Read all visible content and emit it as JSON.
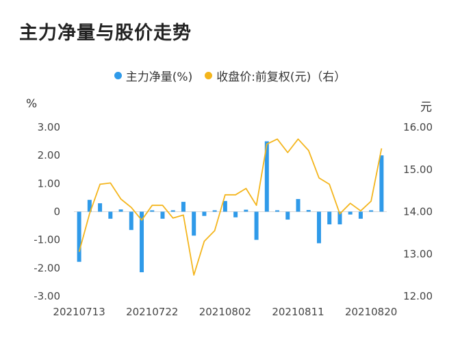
{
  "title": "主力净量与股价走势",
  "legend": [
    {
      "label": "主力净量(%)",
      "color": "#2f9ae9"
    },
    {
      "label": "收盘价:前复权(元)（右）",
      "color": "#f4b51c"
    }
  ],
  "left_unit": "%",
  "right_unit": "元",
  "chart_data": {
    "type": "bar+line",
    "title": "主力净量与股价走势",
    "x_tick_labels": [
      "20210713",
      "20210722",
      "20210802",
      "20210811",
      "20210820"
    ],
    "left_axis": {
      "ticks": [
        "3.00",
        "2.00",
        "1.00",
        "0",
        "-1.00",
        "-2.00",
        "-3.00"
      ],
      "range": [
        -3,
        3
      ]
    },
    "right_axis": {
      "ticks": [
        "16.00",
        "15.00",
        "14.00",
        "13.00",
        "12.00"
      ],
      "range": [
        12,
        16
      ]
    },
    "series": [
      {
        "name": "主力净量(%)",
        "type": "bar",
        "color": "#2f9ae9",
        "values": [
          -1.78,
          0.42,
          0.3,
          -0.25,
          0.08,
          -0.65,
          -2.15,
          0.05,
          -0.25,
          0.05,
          0.35,
          -0.85,
          -0.15,
          0.05,
          0.38,
          -0.2,
          0.07,
          -1.0,
          2.5,
          0.05,
          -0.28,
          0.45,
          0.06,
          -1.12,
          -0.45,
          -0.45,
          -0.1,
          -0.25,
          0.05,
          2.0
        ]
      },
      {
        "name": "收盘价:前复权(元)（右）",
        "type": "line",
        "color": "#f4b51c",
        "values": [
          13.05,
          13.95,
          14.65,
          14.68,
          14.3,
          14.1,
          13.8,
          14.15,
          14.15,
          13.85,
          13.92,
          12.5,
          13.3,
          13.55,
          14.4,
          14.4,
          14.55,
          14.15,
          15.6,
          15.72,
          15.4,
          15.72,
          15.45,
          14.8,
          14.65,
          13.95,
          14.2,
          14.02,
          14.25,
          15.5
        ]
      }
    ]
  }
}
